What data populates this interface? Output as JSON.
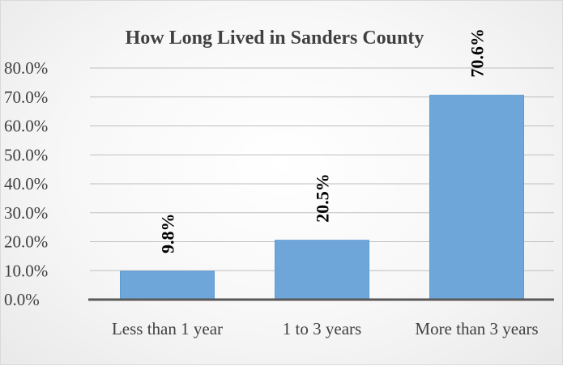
{
  "chart_data": {
    "type": "bar",
    "title": "How Long Lived in Sanders County",
    "xlabel": "",
    "ylabel": "",
    "categories": [
      "Less than 1 year",
      "1 to 3 years",
      "More than 3 years"
    ],
    "values": [
      9.8,
      20.5,
      70.6
    ],
    "data_labels": [
      "9.8%",
      "20.5%",
      "70.6%"
    ],
    "y_ticks": [
      "0.0%",
      "10.0%",
      "20.0%",
      "30.0%",
      "40.0%",
      "50.0%",
      "60.0%",
      "70.0%",
      "80.0%"
    ],
    "ylim": [
      0,
      80
    ],
    "grid": true,
    "legend": "none",
    "bar_color": "#6fa6da",
    "bar_edge_color": "#5b9bd5",
    "axis_color": "#595959",
    "grid_color": "#bfbfbf"
  }
}
